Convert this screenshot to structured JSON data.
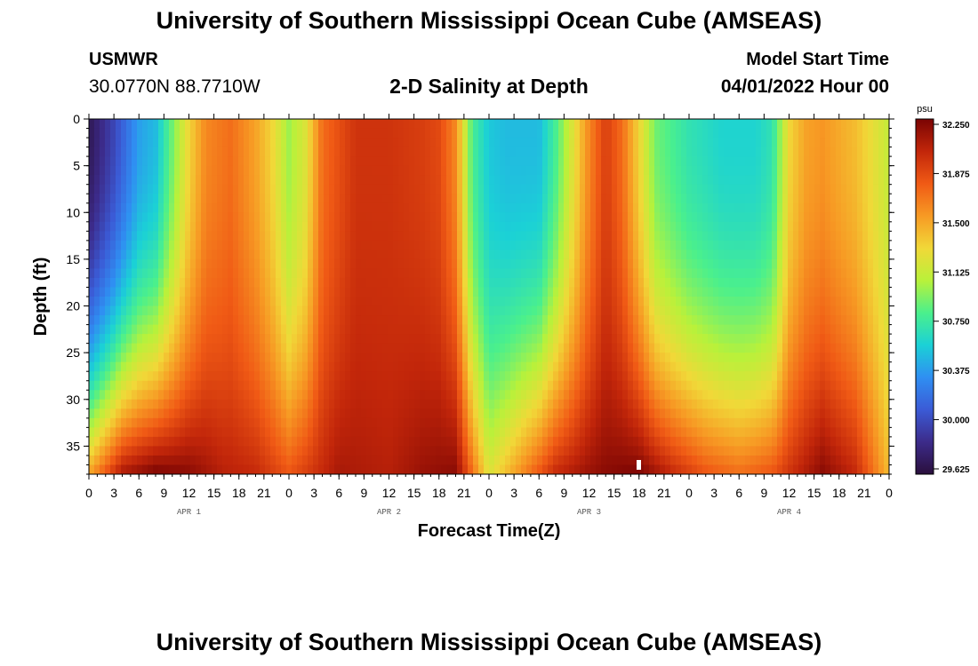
{
  "title": "University of Southern Mississippi Ocean Cube (AMSEAS)",
  "station": {
    "name": "USMWR",
    "coords": "30.0770N  88.7710W"
  },
  "plot_title": "2-D Salinity at Depth",
  "model_start": {
    "label": "Model Start Time",
    "value": "04/01/2022 Hour 00"
  },
  "chart_data": {
    "type": "heatmap",
    "title": "2-D Salinity at Depth",
    "xlabel": "Forecast Time(Z)",
    "ylabel": "Depth (ft)",
    "xlim": [
      0,
      96
    ],
    "ylim": [
      0,
      38
    ],
    "x_tick_labels": [
      "0",
      "3",
      "6",
      "9",
      "12",
      "15",
      "18",
      "21",
      "0",
      "3",
      "6",
      "9",
      "12",
      "15",
      "18",
      "21",
      "0",
      "3",
      "6",
      "9",
      "12",
      "15",
      "18",
      "21",
      "0",
      "3",
      "6",
      "9",
      "12",
      "15",
      "18",
      "21",
      "0"
    ],
    "y_ticks": [
      0,
      5,
      10,
      15,
      20,
      25,
      30,
      35
    ],
    "day_labels": [
      "APR 1",
      "APR 2",
      "APR 3",
      "APR 4"
    ],
    "colorbar": {
      "unit": "psu",
      "ticks": [
        "32.250",
        "31.875",
        "31.500",
        "31.125",
        "30.750",
        "30.375",
        "30.000",
        "29.625"
      ],
      "min": 29.625,
      "max": 32.25,
      "colors": [
        "#2a0f3c",
        "#3c2b8a",
        "#3b5bd6",
        "#2f8ff2",
        "#1bd1d6",
        "#4bf08c",
        "#b9f13a",
        "#f1d838",
        "#f79a24",
        "#f05a15",
        "#c2260a",
        "#7a0403"
      ]
    },
    "surface_profile": {
      "hours": [
        0,
        3,
        6,
        8,
        12,
        14,
        17,
        20,
        22,
        24,
        26,
        28,
        32,
        36,
        40,
        42,
        44,
        46,
        48,
        50,
        54,
        56,
        58,
        60,
        62,
        64,
        66,
        68,
        72,
        76,
        80,
        82,
        84,
        86,
        88,
        92,
        96
      ],
      "salinity": [
        29.7,
        30.0,
        30.4,
        30.5,
        31.3,
        31.6,
        31.7,
        31.5,
        31.3,
        31.0,
        31.2,
        31.7,
        31.95,
        31.95,
        31.9,
        31.85,
        31.6,
        30.8,
        30.55,
        30.5,
        30.5,
        30.8,
        31.2,
        31.6,
        31.9,
        31.7,
        31.3,
        30.9,
        30.7,
        30.6,
        30.6,
        30.7,
        31.3,
        31.5,
        31.55,
        31.4,
        31.1
      ]
    },
    "bottom_profile": {
      "hours": [
        0,
        4,
        8,
        12,
        16,
        20,
        24,
        26,
        30,
        36,
        40,
        44,
        46,
        48,
        52,
        56,
        60,
        62,
        66,
        70,
        74,
        78,
        82,
        84,
        88,
        92,
        96
      ],
      "salinity": [
        31.5,
        32.1,
        32.25,
        32.2,
        32.05,
        32.0,
        31.8,
        31.9,
        32.1,
        32.05,
        32.15,
        32.2,
        31.7,
        31.2,
        31.6,
        32.0,
        32.15,
        32.2,
        32.25,
        32.0,
        31.8,
        31.7,
        31.8,
        31.95,
        32.2,
        32.0,
        31.4
      ]
    }
  }
}
